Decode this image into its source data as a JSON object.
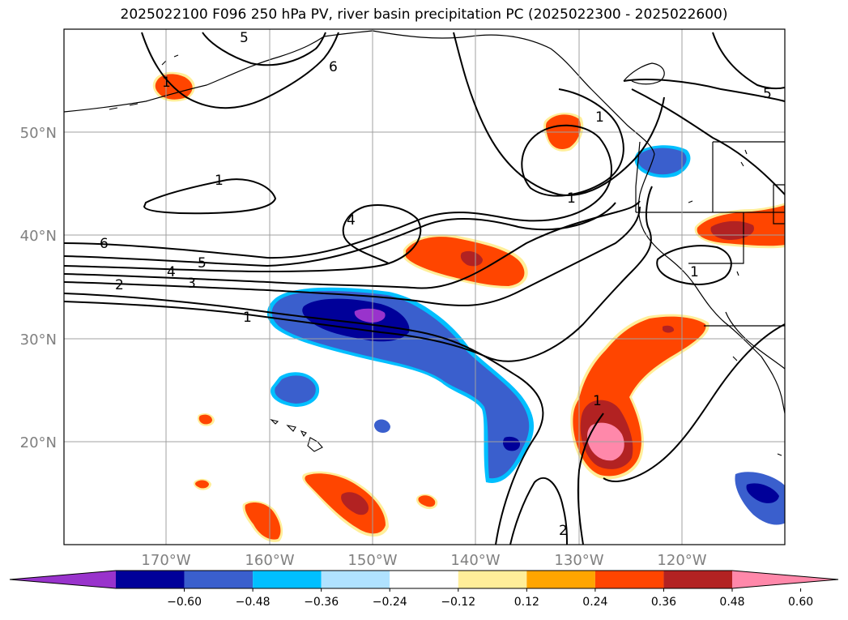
{
  "title": "2025022100 F096 250 hPa PV, river basin precipitation PC (2025022300 - 2025022600)",
  "map": {
    "lat_labels": [
      "50°N",
      "40°N",
      "30°N",
      "20°N"
    ],
    "lon_labels": [
      "170°W",
      "160°W",
      "150°W",
      "140°W",
      "130°W",
      "120°W"
    ],
    "contour_labels": [
      "5",
      "6",
      "1",
      "1",
      "4",
      "1",
      "6",
      "5",
      "4",
      "3",
      "2",
      "1",
      "1",
      "5",
      "1",
      "1",
      "2"
    ],
    "colors": {
      "violet": "#9933cc",
      "navy": "#000099",
      "royal_blue": "#3a5fcd",
      "deep_sky": "#00bfff",
      "light_blue": "#b0e2ff",
      "light_yellow": "#ffee99",
      "orange": "#ffa500",
      "orange_red": "#ff4500",
      "firebrick": "#b22222",
      "pink": "#ff88aa"
    }
  },
  "colorbar": {
    "ticks": [
      "−0.60",
      "−0.48",
      "−0.36",
      "−0.24",
      "−0.12",
      "0.12",
      "0.24",
      "0.36",
      "0.48",
      "0.60"
    ],
    "colors": [
      "#9933cc",
      "#000099",
      "#3a5fcd",
      "#00bfff",
      "#b0e2ff",
      "#ffffff",
      "#ffee99",
      "#ffa500",
      "#ff4500",
      "#b22222",
      "#ff88aa"
    ]
  }
}
